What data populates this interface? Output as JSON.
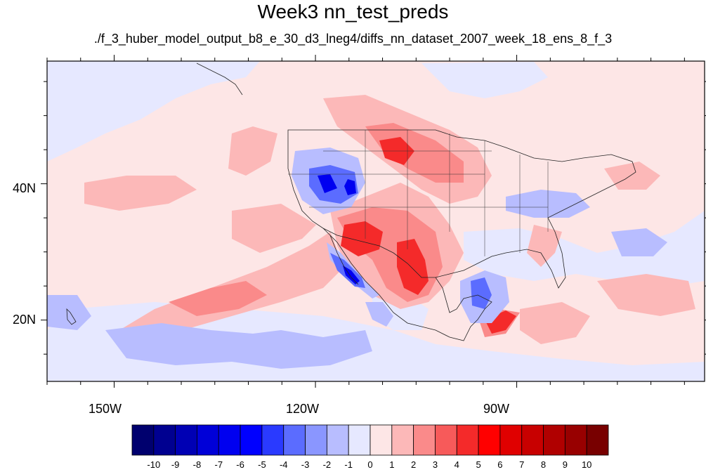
{
  "figure": {
    "title": "Week3 nn_test_preds",
    "subtitle": "./f_3_huber_model_output_b8_e_30_d3_lneg4/diffs_nn_dataset_2007_week_18_ens_8_f_3"
  },
  "map": {
    "lon_range": [
      -160,
      -62
    ],
    "lat_range": [
      11,
      58
    ],
    "lon_ticks": [
      {
        "value": -150,
        "label": "150W"
      },
      {
        "value": -120,
        "label": "120W"
      },
      {
        "value": -90,
        "label": "90W"
      }
    ],
    "lat_ticks": [
      {
        "value": 40,
        "label": "40N"
      },
      {
        "value": 20,
        "label": "20N"
      }
    ],
    "background_color": "#fde6e6",
    "icon": "contour-map"
  },
  "colorbar": {
    "labels": [
      "-10",
      "-9",
      "-8",
      "-7",
      "-6",
      "-5",
      "-4",
      "-3",
      "-2",
      "-1",
      "0",
      "1",
      "2",
      "3",
      "4",
      "5",
      "6",
      "7",
      "8",
      "9",
      "10"
    ],
    "colors": [
      "#00006e",
      "#000090",
      "#0000b4",
      "#0000d8",
      "#0000f0",
      "#0000ff",
      "#2a3aff",
      "#5b6cff",
      "#8a96ff",
      "#b8bdff",
      "#e6e8ff",
      "#fde6e6",
      "#fcb8b8",
      "#fa8a8a",
      "#f75a5a",
      "#f42a2a",
      "#ff0000",
      "#e00000",
      "#c80000",
      "#b00000",
      "#980000",
      "#780000"
    ]
  }
}
